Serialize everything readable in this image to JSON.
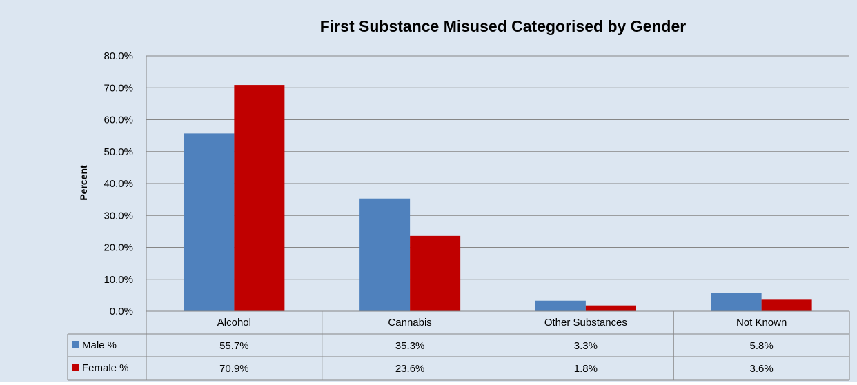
{
  "colors": {
    "background": "#dce6f1",
    "gridline": "#868686",
    "male": "#4f81bd",
    "female": "#c00000"
  },
  "chart_data": {
    "type": "bar",
    "title": "First Substance Misused Categorised by Gender",
    "xlabel": "",
    "ylabel": "Percent",
    "ylim": [
      0,
      80
    ],
    "ytick_step": 10,
    "ytick_labels": [
      "0.0%",
      "10.0%",
      "20.0%",
      "30.0%",
      "40.0%",
      "50.0%",
      "60.0%",
      "70.0%",
      "80.0%"
    ],
    "grid": true,
    "legend": "data-table",
    "categories": [
      "Alcohol",
      "Cannabis",
      "Other Substances",
      "Not Known"
    ],
    "series": [
      {
        "name": "Male %",
        "values": [
          55.7,
          35.3,
          3.3,
          5.8
        ],
        "labels": [
          "55.7%",
          "35.3%",
          "3.3%",
          "5.8%"
        ]
      },
      {
        "name": "Female %",
        "values": [
          70.9,
          23.6,
          1.8,
          3.6
        ],
        "labels": [
          "70.9%",
          "23.6%",
          "1.8%",
          "3.6%"
        ]
      }
    ]
  }
}
